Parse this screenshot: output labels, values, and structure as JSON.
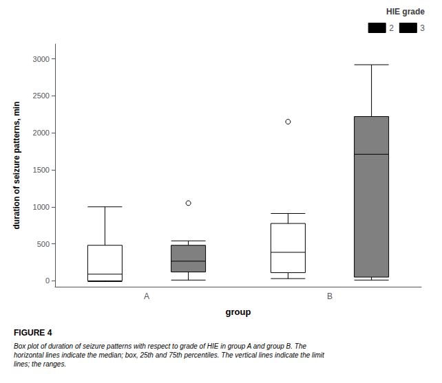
{
  "chart_data": {
    "type": "boxplot",
    "xlabel": "group",
    "ylabel": "duration of seizure patterns, min",
    "categories": [
      "A",
      "B"
    ],
    "series": [
      {
        "name": "2",
        "color": "#ffffff",
        "values": [
          {
            "low": -10,
            "q1": 0,
            "median": 90,
            "q3": 480,
            "high": 1000
          },
          {
            "low": 30,
            "q1": 110,
            "median": 385,
            "q3": 775,
            "high": 910
          }
        ],
        "fliers": [
          [],
          [
            2150
          ]
        ]
      },
      {
        "name": "3",
        "color": "#808080",
        "values": [
          {
            "low": 10,
            "q1": 120,
            "median": 265,
            "q3": 480,
            "high": 540
          },
          {
            "low": 10,
            "q1": 50,
            "median": 1710,
            "q3": 2220,
            "high": 2920
          }
        ],
        "fliers": [
          [
            1050
          ],
          []
        ]
      }
    ],
    "ylim": [
      -80,
      3200
    ],
    "yticks": [
      0,
      500,
      1000,
      1500,
      2000,
      2500,
      3000
    ],
    "grid": false,
    "legend": "upper right",
    "legend_title": "HIE grade",
    "annotations": [
      "FIGURE 4",
      "Box plot of duration of seizure patterns with respect to grade of HIE in group A and group B. The\nhorizontal lines indicate the median; box, 25th and 75th percentiles. The vertical lines indicate the limit\nlines; the ranges."
    ]
  }
}
